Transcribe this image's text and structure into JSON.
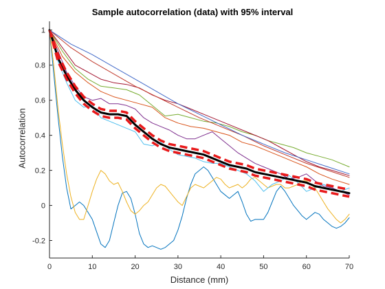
{
  "chart_data": {
    "type": "line",
    "title": "Sample autocorrelation (data) with 95% interval",
    "xlabel": "Distance (mm)",
    "ylabel": "Autocorrelation",
    "xlim": [
      0,
      70
    ],
    "ylim": [
      -0.3,
      1.05
    ],
    "xticks": [
      0,
      10,
      20,
      30,
      40,
      50,
      60,
      70
    ],
    "yticks": [
      -0.2,
      0,
      0.2,
      0.4,
      0.6,
      0.8,
      1
    ],
    "ytick_labels": [
      "-0.2",
      "0",
      "0.2",
      "0.4",
      "0.6",
      "0.8",
      "1"
    ],
    "grid": false,
    "colors": {
      "mean": "#000000",
      "interval": "#e8191a",
      "axis": "#262626"
    },
    "series": [
      {
        "color": "#0072BD",
        "style": "sample",
        "x": [
          0,
          1,
          2,
          3,
          4,
          5,
          6,
          7,
          8,
          9,
          10,
          11,
          12,
          13,
          14,
          15,
          16,
          17,
          18,
          19,
          20,
          21,
          22,
          23,
          24,
          25,
          26,
          27,
          28,
          29,
          30,
          31,
          32,
          33,
          34,
          35,
          36,
          37,
          38,
          39,
          40,
          41,
          42,
          43,
          44,
          45,
          46,
          47,
          48,
          49,
          50,
          51,
          52,
          53,
          54,
          55,
          56,
          57,
          58,
          59,
          60,
          61,
          62,
          63,
          64,
          65,
          66,
          67,
          68,
          69,
          70
        ],
        "y": [
          1,
          0.75,
          0.5,
          0.28,
          0.1,
          -0.02,
          0.0,
          0.02,
          0.0,
          -0.04,
          -0.08,
          -0.15,
          -0.22,
          -0.24,
          -0.2,
          -0.1,
          0.0,
          0.07,
          0.08,
          0.04,
          -0.05,
          -0.16,
          -0.22,
          -0.24,
          -0.23,
          -0.24,
          -0.25,
          -0.24,
          -0.22,
          -0.2,
          -0.14,
          -0.06,
          0.04,
          0.12,
          0.18,
          0.2,
          0.22,
          0.2,
          0.16,
          0.12,
          0.08,
          0.06,
          0.04,
          0.06,
          0.08,
          0.02,
          -0.05,
          -0.09,
          -0.08,
          -0.08,
          -0.08,
          -0.04,
          0.02,
          0.08,
          0.11,
          0.08,
          0.04,
          0.0,
          -0.03,
          -0.06,
          -0.08,
          -0.06,
          -0.04,
          -0.05,
          -0.08,
          -0.1,
          -0.12,
          -0.13,
          -0.12,
          -0.1,
          -0.07
        ]
      },
      {
        "color": "#EDB120",
        "style": "sample",
        "x": [
          0,
          1,
          2,
          3,
          4,
          5,
          6,
          7,
          8,
          9,
          10,
          11,
          12,
          13,
          14,
          15,
          16,
          17,
          18,
          19,
          20,
          21,
          22,
          23,
          24,
          25,
          26,
          27,
          28,
          29,
          30,
          31,
          32,
          33,
          34,
          35,
          36,
          37,
          38,
          39,
          40,
          41,
          42,
          43,
          44,
          45,
          46,
          47,
          48,
          49,
          50,
          51,
          52,
          53,
          54,
          55,
          56,
          57,
          58,
          59,
          60,
          61,
          62,
          63,
          64,
          65,
          66,
          67,
          68,
          69,
          70
        ],
        "y": [
          1,
          0.8,
          0.55,
          0.35,
          0.18,
          0.05,
          -0.04,
          -0.08,
          -0.08,
          0.0,
          0.08,
          0.15,
          0.2,
          0.18,
          0.14,
          0.12,
          0.13,
          0.08,
          0.02,
          -0.03,
          -0.05,
          -0.03,
          0.0,
          0.02,
          0.06,
          0.1,
          0.12,
          0.11,
          0.08,
          0.05,
          0.02,
          0.0,
          0.05,
          0.1,
          0.12,
          0.11,
          0.1,
          0.12,
          0.14,
          0.16,
          0.15,
          0.12,
          0.1,
          0.11,
          0.12,
          0.1,
          0.12,
          0.15,
          0.16,
          0.14,
          0.12,
          0.1,
          0.11,
          0.12,
          0.12,
          0.1,
          0.1,
          0.11,
          0.12,
          0.14,
          0.14,
          0.12,
          0.1,
          0.06,
          0.02,
          -0.02,
          -0.05,
          -0.08,
          -0.1,
          -0.08,
          -0.05
        ]
      },
      {
        "color": "#4DBEEE",
        "style": "sample",
        "x": [
          0,
          2,
          4,
          6,
          8,
          10,
          12,
          14,
          16,
          18,
          20,
          22,
          24,
          26,
          28,
          30,
          32,
          34,
          36,
          38,
          40,
          42,
          44,
          46,
          48,
          50,
          52,
          54,
          56,
          58,
          60,
          62,
          64,
          66,
          68,
          70
        ],
        "y": [
          1,
          0.82,
          0.7,
          0.6,
          0.56,
          0.57,
          0.5,
          0.48,
          0.46,
          0.44,
          0.42,
          0.35,
          0.34,
          0.36,
          0.32,
          0.29,
          0.28,
          0.27,
          0.25,
          0.24,
          0.24,
          0.22,
          0.2,
          0.18,
          0.14,
          0.08,
          0.12,
          0.14,
          0.17,
          0.13,
          0.08,
          0.1,
          0.12,
          0.1,
          0.08,
          0.1
        ]
      },
      {
        "color": "#7E2F8E",
        "style": "sample",
        "x": [
          0,
          2,
          4,
          6,
          8,
          10,
          12,
          14,
          16,
          18,
          20,
          22,
          24,
          26,
          28,
          30,
          32,
          34,
          36,
          38,
          40,
          42,
          44,
          46,
          48,
          50,
          52,
          54,
          56,
          58,
          60,
          62,
          64,
          66,
          68,
          70
        ],
        "y": [
          1,
          0.88,
          0.76,
          0.68,
          0.62,
          0.6,
          0.61,
          0.58,
          0.58,
          0.57,
          0.55,
          0.5,
          0.47,
          0.45,
          0.43,
          0.4,
          0.38,
          0.38,
          0.4,
          0.42,
          0.38,
          0.34,
          0.3,
          0.27,
          0.24,
          0.22,
          0.2,
          0.18,
          0.15,
          0.16,
          0.18,
          0.14,
          0.11,
          0.1,
          0.08,
          0.06
        ]
      },
      {
        "color": "#77AC30",
        "style": "sample",
        "x": [
          0,
          3,
          6,
          9,
          12,
          15,
          18,
          21,
          24,
          27,
          30,
          33,
          36,
          39,
          42,
          45,
          48,
          51,
          54,
          57,
          60,
          63,
          66,
          70
        ],
        "y": [
          1,
          0.88,
          0.78,
          0.72,
          0.68,
          0.67,
          0.66,
          0.63,
          0.57,
          0.51,
          0.52,
          0.5,
          0.48,
          0.47,
          0.45,
          0.42,
          0.4,
          0.37,
          0.35,
          0.33,
          0.3,
          0.28,
          0.26,
          0.22
        ]
      },
      {
        "color": "#D95319",
        "style": "sample",
        "x": [
          0,
          3,
          6,
          9,
          12,
          15,
          18,
          21,
          24,
          27,
          30,
          33,
          36,
          39,
          42,
          45,
          48,
          51,
          54,
          57,
          60,
          63,
          66,
          70
        ],
        "y": [
          1,
          0.85,
          0.76,
          0.7,
          0.65,
          0.62,
          0.6,
          0.58,
          0.56,
          0.5,
          0.47,
          0.45,
          0.44,
          0.42,
          0.4,
          0.36,
          0.34,
          0.31,
          0.28,
          0.25,
          0.22,
          0.18,
          0.15,
          0.12
        ]
      },
      {
        "color": "#A2142F",
        "style": "sample",
        "x": [
          0,
          3,
          6,
          9,
          12,
          15,
          18,
          21,
          24,
          27,
          30,
          33,
          36,
          39,
          42,
          45,
          48,
          51,
          54,
          57,
          60,
          63,
          66,
          70
        ],
        "y": [
          1,
          0.9,
          0.8,
          0.76,
          0.72,
          0.7,
          0.69,
          0.67,
          0.63,
          0.6,
          0.58,
          0.55,
          0.52,
          0.49,
          0.46,
          0.43,
          0.4,
          0.37,
          0.33,
          0.29,
          0.25,
          0.22,
          0.2,
          0.17
        ]
      },
      {
        "color": "#C0392B",
        "style": "sample",
        "x": [
          0,
          5,
          10,
          15,
          20,
          25,
          30,
          35,
          40,
          45,
          50,
          55,
          60,
          65,
          70
        ],
        "y": [
          1,
          0.9,
          0.82,
          0.75,
          0.68,
          0.62,
          0.56,
          0.5,
          0.45,
          0.4,
          0.34,
          0.29,
          0.24,
          0.2,
          0.16
        ]
      },
      {
        "color": "#4169C8",
        "style": "sample",
        "x": [
          0,
          5,
          10,
          15,
          20,
          25,
          30,
          35,
          40,
          45,
          50,
          55,
          60,
          65,
          70
        ],
        "y": [
          1,
          0.92,
          0.86,
          0.79,
          0.72,
          0.65,
          0.58,
          0.52,
          0.46,
          0.4,
          0.35,
          0.3,
          0.26,
          0.22,
          0.18
        ]
      },
      {
        "color": "#000000",
        "style": "mean",
        "x": [
          0,
          2,
          4,
          6,
          8,
          10,
          12,
          14,
          16,
          18,
          20,
          22,
          24,
          26,
          28,
          30,
          32,
          34,
          36,
          38,
          40,
          42,
          44,
          46,
          48,
          50,
          52,
          54,
          56,
          58,
          60,
          62,
          64,
          66,
          68,
          70
        ],
        "y": [
          1,
          0.84,
          0.74,
          0.66,
          0.6,
          0.56,
          0.53,
          0.52,
          0.52,
          0.51,
          0.46,
          0.42,
          0.38,
          0.35,
          0.33,
          0.32,
          0.31,
          0.3,
          0.29,
          0.27,
          0.25,
          0.23,
          0.22,
          0.21,
          0.19,
          0.18,
          0.17,
          0.16,
          0.15,
          0.14,
          0.13,
          0.11,
          0.1,
          0.09,
          0.08,
          0.07
        ]
      },
      {
        "color": "#e8191a",
        "style": "interval",
        "x": [
          0,
          2,
          4,
          6,
          8,
          10,
          12,
          14,
          16,
          18,
          20,
          22,
          24,
          26,
          28,
          30,
          32,
          34,
          36,
          38,
          40,
          42,
          44,
          46,
          48,
          50,
          52,
          54,
          56,
          58,
          60,
          62,
          64,
          66,
          68,
          70
        ],
        "y": [
          1,
          0.86,
          0.76,
          0.68,
          0.62,
          0.58,
          0.55,
          0.54,
          0.54,
          0.53,
          0.48,
          0.44,
          0.4,
          0.37,
          0.35,
          0.34,
          0.33,
          0.32,
          0.31,
          0.29,
          0.27,
          0.25,
          0.24,
          0.23,
          0.21,
          0.2,
          0.19,
          0.18,
          0.17,
          0.16,
          0.15,
          0.13,
          0.12,
          0.11,
          0.1,
          0.09
        ]
      },
      {
        "color": "#e8191a",
        "style": "interval",
        "x": [
          0,
          2,
          4,
          6,
          8,
          10,
          12,
          14,
          16,
          18,
          20,
          22,
          24,
          26,
          28,
          30,
          32,
          34,
          36,
          38,
          40,
          42,
          44,
          46,
          48,
          50,
          52,
          54,
          56,
          58,
          60,
          62,
          64,
          66,
          68,
          70
        ],
        "y": [
          1,
          0.82,
          0.72,
          0.64,
          0.58,
          0.54,
          0.51,
          0.5,
          0.5,
          0.49,
          0.44,
          0.4,
          0.36,
          0.33,
          0.31,
          0.3,
          0.29,
          0.28,
          0.27,
          0.25,
          0.23,
          0.21,
          0.2,
          0.19,
          0.17,
          0.16,
          0.15,
          0.14,
          0.13,
          0.12,
          0.11,
          0.09,
          0.08,
          0.07,
          0.06,
          0.05
        ]
      }
    ]
  }
}
